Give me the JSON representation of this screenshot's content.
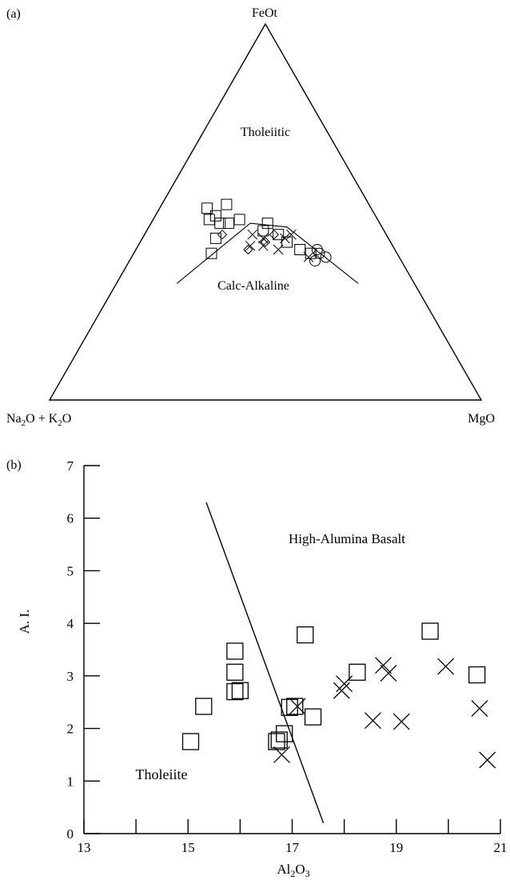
{
  "chart_data": [
    {
      "type": "ternary-scatter",
      "panel_label": "(a)",
      "apex_labels": {
        "top": "FeOt",
        "bottom_left": {
          "main": "Na",
          "sub1": "2",
          "mid": "O + K",
          "sub2": "2",
          "end": "O"
        },
        "bottom_right": "MgO"
      },
      "field_labels": {
        "upper": "Tholeiitic",
        "lower": "Calc-Alkaline"
      },
      "boundary_line": [
        {
          "Na2O_K2O": 55,
          "FeOt": 31,
          "MgO": 14
        },
        {
          "Na2O_K2O": 30,
          "FeOt": 47,
          "MgO": 23
        },
        {
          "Na2O_K2O": 22,
          "FeOt": 46,
          "MgO": 32
        },
        {
          "Na2O_K2O": 13,
          "FeOt": 31,
          "MgO": 56
        }
      ],
      "series": [
        {
          "marker": "square",
          "points": [
            {
              "Na2O_K2O": 43,
              "FeOt": 39,
              "MgO": 18
            },
            {
              "Na2O_K2O": 40,
              "FeOt": 43,
              "MgO": 17
            },
            {
              "Na2O_K2O": 39,
              "FeOt": 48,
              "MgO": 13
            },
            {
              "Na2O_K2O": 38,
              "FeOt": 51,
              "MgO": 11
            },
            {
              "Na2O_K2O": 37,
              "FeOt": 49,
              "MgO": 14
            },
            {
              "Na2O_K2O": 37,
              "FeOt": 47,
              "MgO": 16
            },
            {
              "Na2O_K2O": 35,
              "FeOt": 47,
              "MgO": 18
            },
            {
              "Na2O_K2O": 33,
              "FeOt": 52,
              "MgO": 15
            },
            {
              "Na2O_K2O": 32,
              "FeOt": 48,
              "MgO": 20
            },
            {
              "Na2O_K2O": 28,
              "FeOt": 45,
              "MgO": 27
            },
            {
              "Na2O_K2O": 26,
              "FeOt": 47,
              "MgO": 27
            },
            {
              "Na2O_K2O": 25,
              "FeOt": 44,
              "MgO": 31
            },
            {
              "Na2O_K2O": 24,
              "FeOt": 42,
              "MgO": 34
            },
            {
              "Na2O_K2O": 22,
              "FeOt": 40,
              "MgO": 38
            },
            {
              "Na2O_K2O": 20,
              "FeOt": 39,
              "MgO": 41
            }
          ]
        },
        {
          "marker": "cross",
          "points": [
            {
              "Na2O_K2O": 33,
              "FeOt": 41,
              "MgO": 26
            },
            {
              "Na2O_K2O": 31,
              "FeOt": 44,
              "MgO": 25
            },
            {
              "Na2O_K2O": 30,
              "FeOt": 41,
              "MgO": 29
            },
            {
              "Na2O_K2O": 29,
              "FeOt": 43,
              "MgO": 28
            },
            {
              "Na2O_K2O": 27,
              "FeOt": 40,
              "MgO": 33
            },
            {
              "Na2O_K2O": 24,
              "FeOt": 43,
              "MgO": 33
            },
            {
              "Na2O_K2O": 22,
              "FeOt": 44,
              "MgO": 34
            },
            {
              "Na2O_K2O": 21,
              "FeOt": 38,
              "MgO": 41
            }
          ]
        },
        {
          "marker": "diamond",
          "points": [
            {
              "Na2O_K2O": 38,
              "FeOt": 44,
              "MgO": 18
            },
            {
              "Na2O_K2O": 34,
              "FeOt": 40,
              "MgO": 26
            },
            {
              "Na2O_K2O": 29,
              "FeOt": 42,
              "MgO": 29
            },
            {
              "Na2O_K2O": 26,
              "FeOt": 44,
              "MgO": 30
            }
          ]
        },
        {
          "marker": "circle",
          "points": [
            {
              "Na2O_K2O": 20,
              "FeOt": 37,
              "MgO": 43
            },
            {
              "Na2O_K2O": 18,
              "FeOt": 39,
              "MgO": 43
            },
            {
              "Na2O_K2O": 18,
              "FeOt": 40,
              "MgO": 42
            },
            {
              "Na2O_K2O": 17,
              "FeOt": 38,
              "MgO": 45
            }
          ]
        }
      ]
    },
    {
      "type": "scatter",
      "panel_label": "(b)",
      "xlabel": {
        "main": "Al",
        "sub1": "2",
        "mid": "O",
        "sub2": "3"
      },
      "ylabel": "A. I.",
      "xlim": [
        13,
        21
      ],
      "ylim": [
        0,
        7
      ],
      "xticks": [
        "13",
        "15",
        "17",
        "19",
        "21"
      ],
      "yticks": [
        "0",
        "1",
        "2",
        "3",
        "4",
        "5",
        "6",
        "7"
      ],
      "field_labels": {
        "right": "High-Alumina Basalt",
        "left": "Tholeiite"
      },
      "boundary_line": [
        {
          "x": 15.35,
          "y": 6.3
        },
        {
          "x": 17.6,
          "y": 0.2
        }
      ],
      "series": [
        {
          "marker": "square",
          "points": [
            {
              "x": 15.05,
              "y": 1.75
            },
            {
              "x": 15.3,
              "y": 2.42
            },
            {
              "x": 15.9,
              "y": 3.47
            },
            {
              "x": 15.9,
              "y": 3.07
            },
            {
              "x": 15.9,
              "y": 2.7
            },
            {
              "x": 16.0,
              "y": 2.72
            },
            {
              "x": 16.7,
              "y": 1.75
            },
            {
              "x": 16.75,
              "y": 1.78
            },
            {
              "x": 16.85,
              "y": 1.9
            },
            {
              "x": 16.95,
              "y": 2.4
            },
            {
              "x": 17.05,
              "y": 2.42
            },
            {
              "x": 17.25,
              "y": 3.78
            },
            {
              "x": 17.4,
              "y": 2.22
            },
            {
              "x": 18.25,
              "y": 3.07
            },
            {
              "x": 19.65,
              "y": 3.85
            },
            {
              "x": 20.55,
              "y": 3.02
            }
          ]
        },
        {
          "marker": "cross",
          "points": [
            {
              "x": 16.8,
              "y": 1.5
            },
            {
              "x": 17.1,
              "y": 2.42
            },
            {
              "x": 17.95,
              "y": 2.72
            },
            {
              "x": 18.0,
              "y": 2.85
            },
            {
              "x": 18.55,
              "y": 2.15
            },
            {
              "x": 18.75,
              "y": 3.2
            },
            {
              "x": 18.85,
              "y": 3.05
            },
            {
              "x": 19.1,
              "y": 2.13
            },
            {
              "x": 19.95,
              "y": 3.18
            },
            {
              "x": 20.6,
              "y": 2.38
            },
            {
              "x": 20.75,
              "y": 1.4
            }
          ]
        }
      ]
    }
  ]
}
